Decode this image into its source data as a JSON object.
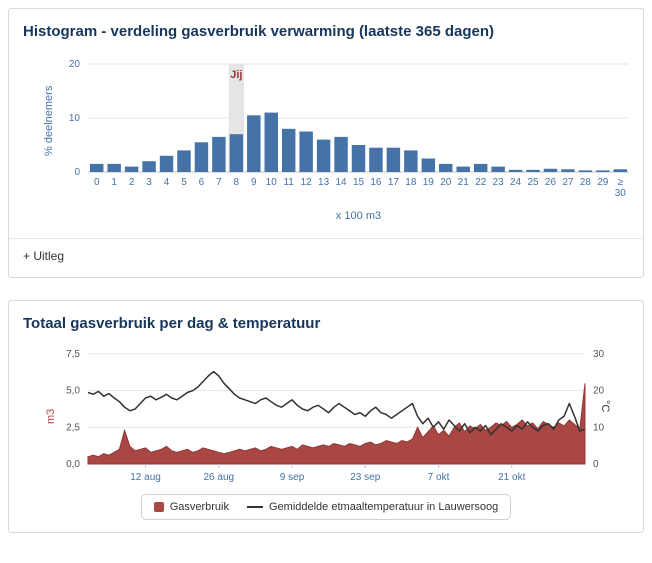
{
  "panel_histogram": {
    "title": "Histogram - verdeling gasverbruik verwarming (laatste 365 dagen)",
    "uitleg_label": "+ Uitleg"
  },
  "panel_daily": {
    "title": "Totaal gasverbruik per dag & temperatuur"
  },
  "chart_data": [
    {
      "type": "bar",
      "title": "Histogram - verdeling gasverbruik verwarming (laatste 365 dagen)",
      "categories": [
        "0",
        "1",
        "2",
        "3",
        "4",
        "5",
        "6",
        "7",
        "8",
        "9",
        "10",
        "11",
        "12",
        "13",
        "14",
        "15",
        "16",
        "17",
        "18",
        "19",
        "20",
        "21",
        "22",
        "23",
        "24",
        "25",
        "26",
        "27",
        "28",
        "29",
        "≥ 30"
      ],
      "values": [
        1.5,
        1.5,
        1.0,
        2.0,
        3.0,
        4.0,
        5.5,
        6.5,
        7.0,
        10.5,
        11.0,
        8.0,
        7.5,
        6.0,
        6.5,
        5.0,
        4.5,
        4.5,
        4.0,
        2.5,
        1.5,
        1.0,
        1.5,
        1.0,
        0.4,
        0.4,
        0.6,
        0.5,
        0.3,
        0.3,
        0.5
      ],
      "ylabel": "% deelnemers",
      "xlabel": "x 100 m3",
      "ylim": [
        0,
        20
      ],
      "yticks": [
        0,
        10,
        20
      ],
      "marker": {
        "label": "Jij",
        "category_index": 8
      },
      "bar_color": "#4572a7",
      "marker_band_color": "#e5e5e5",
      "marker_label_color": "#953735",
      "grid": true
    },
    {
      "type": "area",
      "title": "Totaal gasverbruik per dag & temperatuur",
      "x_tick_labels": [
        "12 aug",
        "26 aug",
        "9 sep",
        "23 sep",
        "7 okt",
        "21 okt"
      ],
      "x_tick_indices": [
        11,
        25,
        39,
        53,
        67,
        81
      ],
      "left_axis": {
        "label": "m3",
        "ticks": [
          "0,0",
          "2,5",
          "5,0",
          "7,5"
        ],
        "min": 0,
        "max": 7.5
      },
      "right_axis": {
        "label": "°C",
        "ticks": [
          "0",
          "10",
          "20",
          "30"
        ],
        "min": 0,
        "max": 30
      },
      "legend_position": "bottom",
      "grid": true,
      "series": [
        {
          "name": "Gasverbruik",
          "type": "area",
          "axis": "left",
          "color": "#aa4643",
          "values": [
            0.5,
            0.6,
            0.5,
            0.7,
            0.6,
            0.8,
            1.0,
            2.3,
            1.2,
            0.9,
            1.0,
            1.1,
            0.8,
            0.9,
            1.0,
            1.2,
            0.9,
            0.8,
            0.9,
            1.0,
            0.8,
            0.9,
            1.1,
            1.0,
            0.9,
            0.8,
            0.7,
            0.8,
            0.9,
            1.0,
            0.9,
            1.0,
            1.1,
            0.9,
            1.0,
            1.2,
            1.1,
            1.0,
            1.1,
            1.2,
            1.0,
            1.3,
            1.2,
            1.1,
            1.2,
            1.3,
            1.2,
            1.4,
            1.3,
            1.2,
            1.4,
            1.3,
            1.2,
            1.4,
            1.5,
            1.3,
            1.4,
            1.6,
            1.5,
            1.4,
            1.6,
            1.5,
            1.7,
            2.5,
            1.8,
            2.2,
            2.6,
            2.0,
            2.3,
            1.9,
            2.5,
            2.8,
            2.2,
            2.6,
            2.4,
            2.7,
            2.3,
            2.5,
            2.8,
            2.6,
            2.9,
            2.5,
            2.7,
            3.0,
            2.6,
            2.8,
            2.4,
            2.9,
            2.7,
            2.5,
            2.8,
            2.6,
            3.0,
            2.7,
            2.4,
            5.5
          ]
        },
        {
          "name": "Gemiddelde etmaaltemperatuur in Lauwersoog",
          "type": "line",
          "axis": "right",
          "color": "#333333",
          "values": [
            19.5,
            19.0,
            19.8,
            18.5,
            19.2,
            18.0,
            17.0,
            15.5,
            14.5,
            15.0,
            16.5,
            18.0,
            18.5,
            17.5,
            18.2,
            19.0,
            18.0,
            17.5,
            18.5,
            19.5,
            20.0,
            21.0,
            22.5,
            24.0,
            25.2,
            24.0,
            22.0,
            20.5,
            19.0,
            18.0,
            17.5,
            17.0,
            16.5,
            17.5,
            18.0,
            17.0,
            16.0,
            15.5,
            16.5,
            17.5,
            16.0,
            15.0,
            14.5,
            15.5,
            16.0,
            15.0,
            14.0,
            15.5,
            16.5,
            15.5,
            14.5,
            13.5,
            14.0,
            13.0,
            14.5,
            15.5,
            14.0,
            13.5,
            12.5,
            13.5,
            14.5,
            15.5,
            16.5,
            13.0,
            11.0,
            12.5,
            10.0,
            11.5,
            9.5,
            12.0,
            10.5,
            9.0,
            11.0,
            8.5,
            10.0,
            9.0,
            10.5,
            8.0,
            9.5,
            11.0,
            10.0,
            9.0,
            10.5,
            9.5,
            11.5,
            10.0,
            9.0,
            10.5,
            11.0,
            9.5,
            12.0,
            13.0,
            16.5,
            13.0,
            9.0,
            9.5
          ]
        }
      ]
    }
  ]
}
